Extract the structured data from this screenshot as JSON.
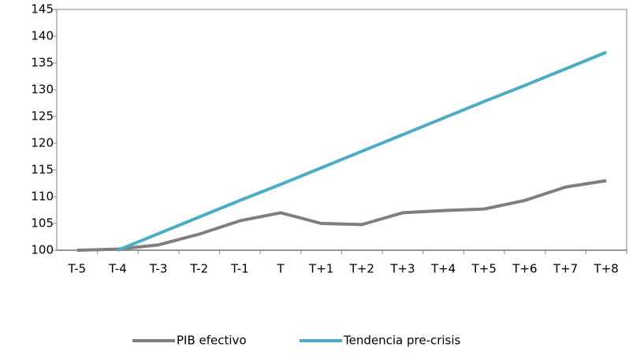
{
  "chart_data": {
    "type": "line",
    "categories": [
      "T-5",
      "T-4",
      "T-3",
      "T-2",
      "T-1",
      "T",
      "T+1",
      "T+2",
      "T+3",
      "T+4",
      "T+5",
      "T+6",
      "T+7",
      "T+8"
    ],
    "series": [
      {
        "name": "PIB efectivo",
        "color": "#7f7f7f",
        "values": [
          100,
          100.2,
          101,
          103,
          105.5,
          107,
          105,
          104.8,
          107,
          107.4,
          107.7,
          109.3,
          111.8,
          113
        ]
      },
      {
        "name": "Tendencia pre-crisis",
        "color": "#4bacc6",
        "values": [
          null,
          100,
          103.1,
          106.2,
          109.3,
          112.3,
          115.4,
          118.5,
          121.6,
          124.7,
          127.8,
          130.8,
          133.9,
          137
        ]
      }
    ],
    "ylim": [
      100,
      145
    ],
    "yticks": [
      100,
      105,
      110,
      115,
      120,
      125,
      130,
      135,
      140,
      145
    ],
    "legend": "bottom"
  }
}
